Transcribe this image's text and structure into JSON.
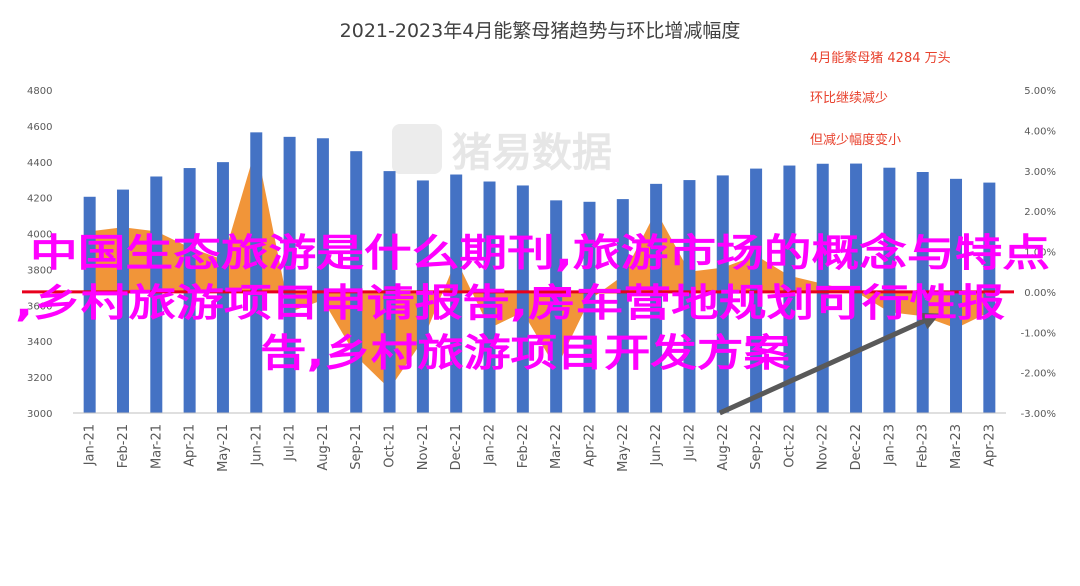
{
  "chart_data": {
    "type": "bar",
    "title": "2021-2023年4月能繁母猪趋势与环比增减幅度",
    "categories": [
      "Jan-21",
      "Feb-21",
      "Mar-21",
      "Apr-21",
      "May-21",
      "Jun-21",
      "Jul-21",
      "Aug-21",
      "Sep-21",
      "Oct-21",
      "Nov-21",
      "Dec-21",
      "Jan-22",
      "Feb-22",
      "Mar-22",
      "Apr-22",
      "May-22",
      "Jun-22",
      "Jul-22",
      "Aug-22",
      "Sep-22",
      "Oct-22",
      "Nov-22",
      "Dec-22",
      "Jan-23",
      "Feb-23",
      "Mar-23",
      "Apr-23"
    ],
    "series": [
      {
        "type": "bar",
        "axis": "left",
        "color": "#4472c4",
        "values": [
          4205,
          4245,
          4318,
          4365,
          4398,
          4564,
          4539,
          4531,
          4459,
          4348,
          4296,
          4329,
          4290,
          4268,
          4185,
          4177,
          4192,
          4277,
          4298,
          4324,
          4362,
          4379,
          4389,
          4390,
          4367,
          4343,
          4305,
          4284
        ]
      },
      {
        "type": "area",
        "axis": "right",
        "color": "#f08a24",
        "values": [
          1.5,
          1.6,
          1.5,
          1.1,
          0.8,
          3.6,
          -0.5,
          -0.2,
          -1.6,
          -2.4,
          -1.2,
          0.8,
          -0.9,
          -0.5,
          -1.9,
          -0.2,
          0.4,
          2.0,
          0.5,
          0.6,
          0.9,
          0.4,
          0.2,
          0.0,
          -0.5,
          -0.6,
          -0.9,
          -0.5
        ]
      }
    ],
    "ylim_left": [
      3000,
      4800
    ],
    "yticks_left": [
      "4800",
      "4600",
      "4400",
      "4200",
      "4000",
      "3800",
      "3600",
      "3400",
      "3200",
      "3000"
    ],
    "ylim_right": [
      -3.0,
      5.0
    ],
    "yticks_right": [
      "5.00%",
      "4.00%",
      "3.00%",
      "2.00%",
      "1.00%",
      "0.00%",
      "-1.00%",
      "-2.00%",
      "-3.00%"
    ],
    "reference_line": {
      "value": 0.0,
      "axis": "right",
      "color": "#e8001c"
    },
    "annotations": [
      "4月能繁母猪 4284 万头",
      "环比继续减少",
      "但减少幅度变小"
    ],
    "annotation_color": "#e8412d",
    "trend_arrow_color": "#595959",
    "grid": false
  },
  "watermark": "猪易数据",
  "overlay": {
    "line1": "中国生态旅游是什么期刊,旅游市场的概念与特点",
    "line2": ",乡村旅游项目申请报告,房车营地规划可行性报",
    "line3": "告,乡村旅游项目开发方案",
    "color": "#ff00ff"
  }
}
